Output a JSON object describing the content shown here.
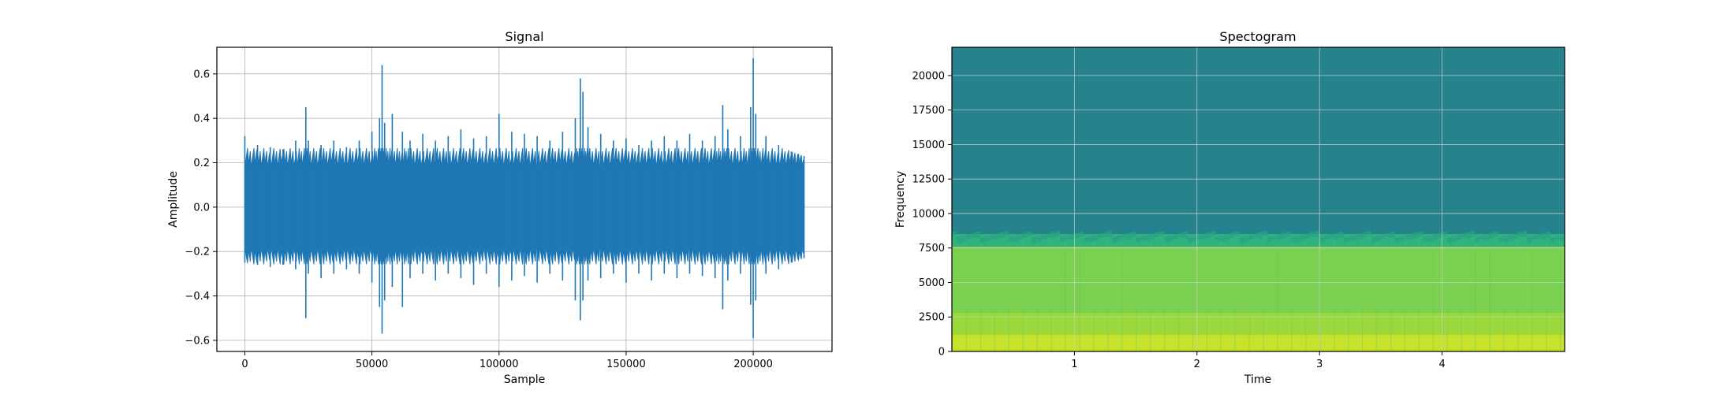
{
  "chart_data": [
    {
      "type": "line",
      "title": "Signal",
      "xlabel": "Sample",
      "ylabel": "Amplitude",
      "xlim": [
        -11000,
        231000
      ],
      "ylim": [
        -0.65,
        0.72
      ],
      "xticks": [
        0,
        50000,
        100000,
        150000,
        200000
      ],
      "xtick_labels": [
        "0",
        "50000",
        "100000",
        "150000",
        "200000"
      ],
      "yticks": [
        -0.6,
        -0.4,
        -0.2,
        0.0,
        0.2,
        0.4,
        0.6
      ],
      "ytick_labels": [
        "−0.6",
        "−0.4",
        "−0.2",
        "0.0",
        "0.2",
        "0.4",
        "0.6"
      ],
      "grid": true,
      "color": "#1f77b4",
      "series": [
        {
          "x": [
            0,
            5000,
            10000,
            15000,
            20000,
            24000,
            25000,
            30000,
            35000,
            40000,
            45000,
            50000,
            53000,
            54000,
            55000,
            58000,
            62000,
            65000,
            70000,
            75000,
            80000,
            85000,
            90000,
            95000,
            100000,
            105000,
            110000,
            115000,
            120000,
            125000,
            130000,
            132000,
            133000,
            135000,
            140000,
            145000,
            150000,
            155000,
            160000,
            165000,
            170000,
            175000,
            180000,
            185000,
            188000,
            190000,
            195000,
            199000,
            200000,
            201000,
            205000,
            210000,
            215000,
            220000
          ],
          "upper": [
            0.32,
            0.28,
            0.27,
            0.26,
            0.3,
            0.45,
            0.3,
            0.28,
            0.3,
            0.27,
            0.3,
            0.34,
            0.4,
            0.64,
            0.38,
            0.42,
            0.34,
            0.3,
            0.33,
            0.3,
            0.32,
            0.35,
            0.31,
            0.32,
            0.42,
            0.34,
            0.33,
            0.32,
            0.3,
            0.34,
            0.4,
            0.58,
            0.52,
            0.36,
            0.33,
            0.3,
            0.31,
            0.28,
            0.3,
            0.32,
            0.3,
            0.33,
            0.3,
            0.32,
            0.46,
            0.35,
            0.32,
            0.45,
            0.67,
            0.42,
            0.32,
            0.28,
            0.25,
            0.23
          ],
          "lower": [
            -0.25,
            -0.26,
            -0.27,
            -0.26,
            -0.28,
            -0.5,
            -0.3,
            -0.32,
            -0.3,
            -0.28,
            -0.3,
            -0.34,
            -0.45,
            -0.57,
            -0.42,
            -0.36,
            -0.45,
            -0.32,
            -0.3,
            -0.33,
            -0.3,
            -0.32,
            -0.35,
            -0.3,
            -0.36,
            -0.33,
            -0.31,
            -0.34,
            -0.3,
            -0.33,
            -0.42,
            -0.51,
            -0.42,
            -0.33,
            -0.32,
            -0.3,
            -0.34,
            -0.3,
            -0.33,
            -0.3,
            -0.32,
            -0.3,
            -0.31,
            -0.32,
            -0.46,
            -0.33,
            -0.3,
            -0.44,
            -0.59,
            -0.42,
            -0.3,
            -0.28,
            -0.25,
            -0.23
          ]
        }
      ]
    },
    {
      "type": "heatmap",
      "title": "Spectogram",
      "xlabel": "Time",
      "ylabel": "Frequency",
      "xlim": [
        0,
        5.0
      ],
      "ylim": [
        0,
        22050
      ],
      "xticks": [
        1,
        2,
        3,
        4
      ],
      "xtick_labels": [
        "1",
        "2",
        "3",
        "4"
      ],
      "yticks": [
        0,
        2500,
        5000,
        7500,
        10000,
        12500,
        15000,
        17500,
        20000
      ],
      "ytick_labels": [
        "0",
        "2500",
        "5000",
        "7500",
        "10000",
        "12500",
        "15000",
        "17500",
        "20000"
      ],
      "grid": true,
      "colormap": "viridis",
      "bands": [
        {
          "from": 0,
          "to": 1200,
          "level": 0.92
        },
        {
          "from": 1200,
          "to": 2800,
          "level": 0.85
        },
        {
          "from": 2800,
          "to": 7600,
          "level": 0.8
        },
        {
          "from": 7600,
          "to": 8500,
          "level": 0.64
        },
        {
          "from": 8500,
          "to": 22050,
          "level": 0.45
        }
      ],
      "cutoff_frequency": 8500
    }
  ]
}
